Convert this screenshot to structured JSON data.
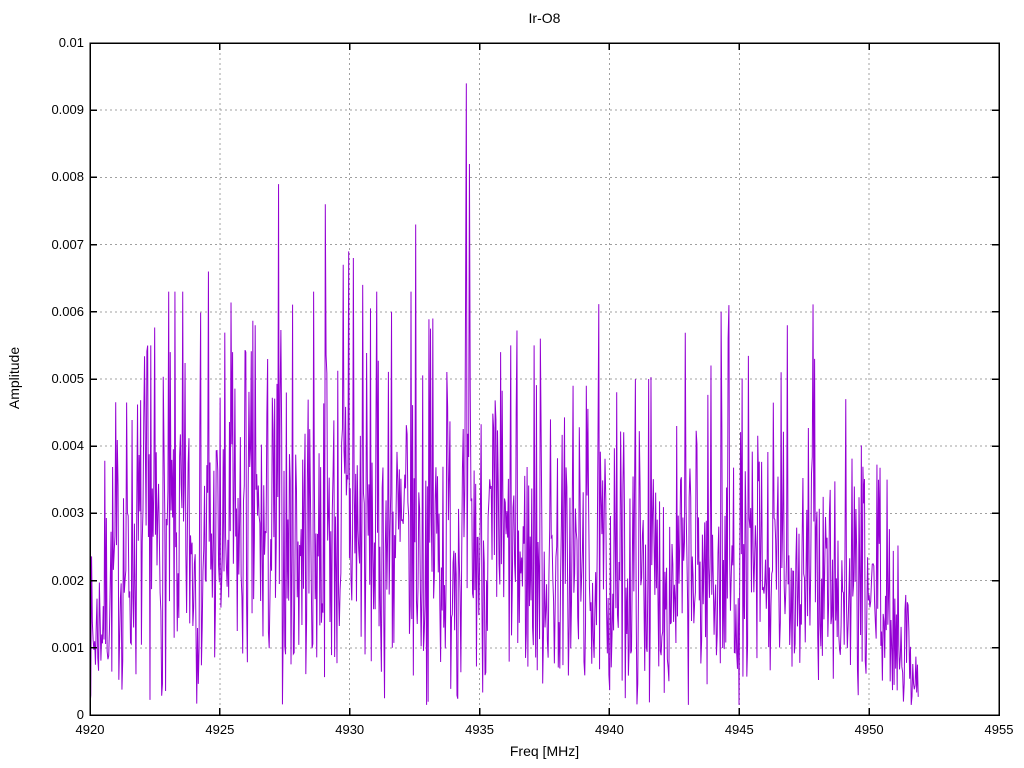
{
  "chart_data": {
    "type": "line",
    "title": "Ir-O8",
    "xlabel": "Freq [MHz]",
    "ylabel": "Amplitude",
    "xlim": [
      4920,
      4955
    ],
    "ylim": [
      0,
      0.01
    ],
    "grid": "dashed-major-both-axes",
    "legend": "none",
    "x_ticks": [
      {
        "v": 4920,
        "label": "4920"
      },
      {
        "v": 4925,
        "label": "4925"
      },
      {
        "v": 4930,
        "label": "4930"
      },
      {
        "v": 4935,
        "label": "4935"
      },
      {
        "v": 4940,
        "label": "4940"
      },
      {
        "v": 4945,
        "label": "4945"
      },
      {
        "v": 4950,
        "label": "4950"
      },
      {
        "v": 4955,
        "label": "4955"
      }
    ],
    "y_ticks": [
      {
        "v": 0,
        "label": "0"
      },
      {
        "v": 0.001,
        "label": "0.001"
      },
      {
        "v": 0.002,
        "label": "0.002"
      },
      {
        "v": 0.003,
        "label": "0.003"
      },
      {
        "v": 0.004,
        "label": "0.004"
      },
      {
        "v": 0.005,
        "label": "0.005"
      },
      {
        "v": 0.006,
        "label": "0.006"
      },
      {
        "v": 0.007,
        "label": "0.007"
      },
      {
        "v": 0.008,
        "label": "0.008"
      },
      {
        "v": 0.009,
        "label": "0.009"
      },
      {
        "v": 0.01,
        "label": "0.01"
      }
    ],
    "colors": {
      "line": "#9400d3",
      "grid": "#a0a0a0",
      "border": "#000000",
      "background": "#ffffff",
      "text": "#000000"
    },
    "series": {
      "description": "dense noise magnitude spectrum, single violet trace",
      "data_range": [
        4920.0,
        4951.9
      ],
      "gen": {
        "start": 4920.0,
        "end": 4951.9,
        "step": 0.03,
        "seed": 7,
        "floor": 0.00015,
        "cap": 0.0063
      },
      "envelope_sigma": [
        [
          4920.0,
          0.0008
        ],
        [
          4920.4,
          0.0012
        ],
        [
          4921.0,
          0.0018
        ],
        [
          4922.0,
          0.0021
        ],
        [
          4926.0,
          0.0021
        ],
        [
          4928.0,
          0.0022
        ],
        [
          4930.0,
          0.0023
        ],
        [
          4932.0,
          0.0021
        ],
        [
          4934.0,
          0.0022
        ],
        [
          4935.0,
          0.002
        ],
        [
          4936.0,
          0.0019
        ],
        [
          4938.0,
          0.0018
        ],
        [
          4940.0,
          0.0017
        ],
        [
          4942.0,
          0.0017
        ],
        [
          4944.0,
          0.0018
        ],
        [
          4946.0,
          0.0017
        ],
        [
          4948.0,
          0.0017
        ],
        [
          4949.0,
          0.0015
        ],
        [
          4950.0,
          0.0014
        ],
        [
          4950.8,
          0.0012
        ],
        [
          4951.4,
          0.0009
        ],
        [
          4951.9,
          0.0004
        ]
      ],
      "major_peaks": [
        [
          4922.35,
          0.0055
        ],
        [
          4923.1,
          0.0054
        ],
        [
          4924.55,
          0.0066
        ],
        [
          4925.5,
          0.0054
        ],
        [
          4926.0,
          0.0054
        ],
        [
          4926.35,
          0.0058
        ],
        [
          4927.25,
          0.0079
        ],
        [
          4929.05,
          0.0076
        ],
        [
          4929.75,
          0.0067
        ],
        [
          4929.95,
          0.0069
        ],
        [
          4930.15,
          0.0068
        ],
        [
          4930.5,
          0.0064
        ],
        [
          4931.6,
          0.006
        ],
        [
          4932.55,
          0.0073
        ],
        [
          4933.2,
          0.0059
        ],
        [
          4934.5,
          0.0094
        ],
        [
          4934.62,
          0.0082
        ],
        [
          4935.8,
          0.0054
        ],
        [
          4936.2,
          0.0055
        ],
        [
          4937.1,
          0.0055
        ],
        [
          4937.35,
          0.0056
        ],
        [
          4938.6,
          0.0049
        ],
        [
          4939.1,
          0.0049
        ],
        [
          4941.0,
          0.005
        ],
        [
          4941.5,
          0.005
        ],
        [
          4942.6,
          0.0043
        ],
        [
          4943.9,
          0.0052
        ],
        [
          4944.3,
          0.006
        ],
        [
          4944.6,
          0.0061
        ],
        [
          4946.6,
          0.0051
        ],
        [
          4946.85,
          0.0058
        ],
        [
          4947.9,
          0.0053
        ],
        [
          4949.1,
          0.0047
        ],
        [
          4950.35,
          0.0035
        ]
      ]
    }
  }
}
